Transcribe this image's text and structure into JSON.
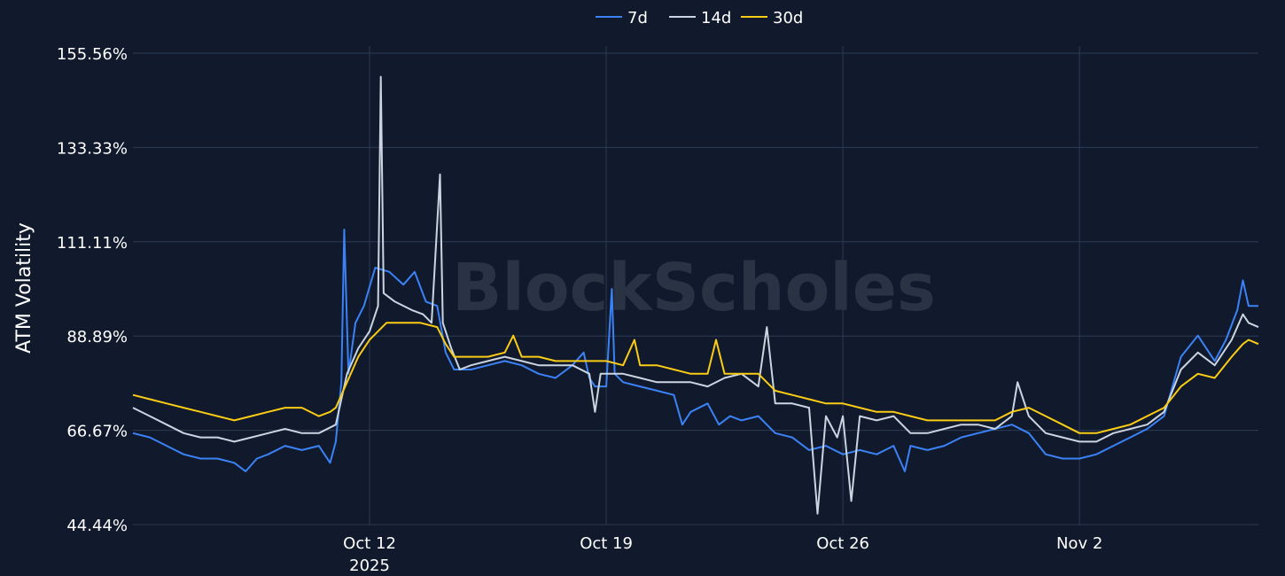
{
  "chart_data": {
    "type": "line",
    "title": "",
    "xlabel": "",
    "ylabel": "ATM Volatility",
    "watermark": "BlockScholes",
    "x_range": [
      "2025-10-05",
      "2025-11-07"
    ],
    "ylim": [
      44.44,
      155.56
    ],
    "y_ticks": [
      {
        "value": 155.56,
        "label": "155.56%"
      },
      {
        "value": 133.33,
        "label": "133.33%"
      },
      {
        "value": 111.11,
        "label": "111.11%"
      },
      {
        "value": 88.89,
        "label": "88.89%"
      },
      {
        "value": 66.67,
        "label": "66.67%"
      },
      {
        "value": 44.44,
        "label": "44.44%"
      }
    ],
    "x_ticks": [
      {
        "date": "2025-10-12",
        "label": "Oct 12",
        "sublabel": "2025"
      },
      {
        "date": "2025-10-19",
        "label": "Oct 19",
        "sublabel": ""
      },
      {
        "date": "2025-10-26",
        "label": "Oct 26",
        "sublabel": ""
      },
      {
        "date": "2025-11-02",
        "label": "Nov 2",
        "sublabel": ""
      }
    ],
    "grid": true,
    "legend_position": "top-center",
    "series": [
      {
        "name": "7d",
        "color": "#3b82f6",
        "points": [
          [
            "2025-10-05 00:00",
            66
          ],
          [
            "2025-10-05 12:00",
            65
          ],
          [
            "2025-10-06 00:00",
            63
          ],
          [
            "2025-10-06 12:00",
            61
          ],
          [
            "2025-10-07 00:00",
            60
          ],
          [
            "2025-10-07 12:00",
            60
          ],
          [
            "2025-10-08 00:00",
            59
          ],
          [
            "2025-10-08 08:00",
            57
          ],
          [
            "2025-10-08 16:00",
            60
          ],
          [
            "2025-10-09 00:00",
            61
          ],
          [
            "2025-10-09 12:00",
            63
          ],
          [
            "2025-10-10 00:00",
            62
          ],
          [
            "2025-10-10 12:00",
            63
          ],
          [
            "2025-10-10 20:00",
            59
          ],
          [
            "2025-10-11 00:00",
            64
          ],
          [
            "2025-10-11 04:00",
            78
          ],
          [
            "2025-10-11 06:00",
            114
          ],
          [
            "2025-10-11 09:00",
            80
          ],
          [
            "2025-10-11 14:00",
            92
          ],
          [
            "2025-10-11 20:00",
            96
          ],
          [
            "2025-10-12 04:00",
            105
          ],
          [
            "2025-10-12 14:00",
            104
          ],
          [
            "2025-10-13 00:00",
            101
          ],
          [
            "2025-10-13 08:00",
            104
          ],
          [
            "2025-10-13 16:00",
            97
          ],
          [
            "2025-10-14 00:00",
            96
          ],
          [
            "2025-10-14 06:00",
            85
          ],
          [
            "2025-10-14 12:00",
            81
          ],
          [
            "2025-10-15 00:00",
            81
          ],
          [
            "2025-10-15 12:00",
            82
          ],
          [
            "2025-10-16 00:00",
            83
          ],
          [
            "2025-10-16 12:00",
            82
          ],
          [
            "2025-10-17 00:00",
            80
          ],
          [
            "2025-10-17 12:00",
            79
          ],
          [
            "2025-10-18 00:00",
            82
          ],
          [
            "2025-10-18 08:00",
            85
          ],
          [
            "2025-10-18 12:00",
            79
          ],
          [
            "2025-10-18 16:00",
            77
          ],
          [
            "2025-10-19 00:00",
            77
          ],
          [
            "2025-10-19 04:00",
            100
          ],
          [
            "2025-10-19 06:00",
            80
          ],
          [
            "2025-10-19 12:00",
            78
          ],
          [
            "2025-10-20 00:00",
            77
          ],
          [
            "2025-10-20 12:00",
            76
          ],
          [
            "2025-10-21 00:00",
            75
          ],
          [
            "2025-10-21 06:00",
            68
          ],
          [
            "2025-10-21 12:00",
            71
          ],
          [
            "2025-10-22 00:00",
            73
          ],
          [
            "2025-10-22 08:00",
            68
          ],
          [
            "2025-10-22 16:00",
            70
          ],
          [
            "2025-10-23 00:00",
            69
          ],
          [
            "2025-10-23 12:00",
            70
          ],
          [
            "2025-10-24 00:00",
            66
          ],
          [
            "2025-10-24 12:00",
            65
          ],
          [
            "2025-10-25 00:00",
            62
          ],
          [
            "2025-10-25 12:00",
            63
          ],
          [
            "2025-10-26 00:00",
            61
          ],
          [
            "2025-10-26 12:00",
            62
          ],
          [
            "2025-10-27 00:00",
            61
          ],
          [
            "2025-10-27 12:00",
            63
          ],
          [
            "2025-10-27 20:00",
            57
          ],
          [
            "2025-10-28 00:00",
            63
          ],
          [
            "2025-10-28 12:00",
            62
          ],
          [
            "2025-10-29 00:00",
            63
          ],
          [
            "2025-10-29 12:00",
            65
          ],
          [
            "2025-10-30 00:00",
            66
          ],
          [
            "2025-10-30 12:00",
            67
          ],
          [
            "2025-10-31 00:00",
            68
          ],
          [
            "2025-10-31 12:00",
            66
          ],
          [
            "2025-11-01 00:00",
            61
          ],
          [
            "2025-11-01 12:00",
            60
          ],
          [
            "2025-11-02 00:00",
            60
          ],
          [
            "2025-11-02 12:00",
            61
          ],
          [
            "2025-11-03 00:00",
            63
          ],
          [
            "2025-11-03 12:00",
            65
          ],
          [
            "2025-11-04 00:00",
            67
          ],
          [
            "2025-11-04 12:00",
            70
          ],
          [
            "2025-11-05 00:00",
            84
          ],
          [
            "2025-11-05 12:00",
            89
          ],
          [
            "2025-11-06 00:00",
            83
          ],
          [
            "2025-11-06 08:00",
            88
          ],
          [
            "2025-11-06 16:00",
            95
          ],
          [
            "2025-11-06 20:00",
            102
          ],
          [
            "2025-11-07 00:00",
            96
          ],
          [
            "2025-11-07 07:00",
            96
          ]
        ]
      },
      {
        "name": "14d",
        "color": "#cbd5e1",
        "points": [
          [
            "2025-10-05 00:00",
            72
          ],
          [
            "2025-10-05 12:00",
            70
          ],
          [
            "2025-10-06 00:00",
            68
          ],
          [
            "2025-10-06 12:00",
            66
          ],
          [
            "2025-10-07 00:00",
            65
          ],
          [
            "2025-10-07 12:00",
            65
          ],
          [
            "2025-10-08 00:00",
            64
          ],
          [
            "2025-10-08 12:00",
            65
          ],
          [
            "2025-10-09 00:00",
            66
          ],
          [
            "2025-10-09 12:00",
            67
          ],
          [
            "2025-10-10 00:00",
            66
          ],
          [
            "2025-10-10 12:00",
            66
          ],
          [
            "2025-10-11 00:00",
            68
          ],
          [
            "2025-10-11 08:00",
            80
          ],
          [
            "2025-10-11 16:00",
            86
          ],
          [
            "2025-10-12 00:00",
            90
          ],
          [
            "2025-10-12 06:00",
            96
          ],
          [
            "2025-10-12 08:00",
            150
          ],
          [
            "2025-10-12 10:00",
            99
          ],
          [
            "2025-10-12 18:00",
            97
          ],
          [
            "2025-10-13 06:00",
            95
          ],
          [
            "2025-10-13 14:00",
            94
          ],
          [
            "2025-10-13 20:00",
            92
          ],
          [
            "2025-10-14 02:00",
            127
          ],
          [
            "2025-10-14 04:00",
            92
          ],
          [
            "2025-10-14 10:00",
            86
          ],
          [
            "2025-10-14 16:00",
            81
          ],
          [
            "2025-10-15 00:00",
            82
          ],
          [
            "2025-10-15 12:00",
            83
          ],
          [
            "2025-10-16 00:00",
            84
          ],
          [
            "2025-10-16 12:00",
            83
          ],
          [
            "2025-10-17 00:00",
            82
          ],
          [
            "2025-10-17 12:00",
            82
          ],
          [
            "2025-10-18 00:00",
            82
          ],
          [
            "2025-10-18 12:00",
            80
          ],
          [
            "2025-10-18 16:00",
            71
          ],
          [
            "2025-10-18 20:00",
            80
          ],
          [
            "2025-10-19 00:00",
            80
          ],
          [
            "2025-10-19 12:00",
            80
          ],
          [
            "2025-10-20 00:00",
            79
          ],
          [
            "2025-10-20 12:00",
            78
          ],
          [
            "2025-10-21 00:00",
            78
          ],
          [
            "2025-10-21 12:00",
            78
          ],
          [
            "2025-10-22 00:00",
            77
          ],
          [
            "2025-10-22 12:00",
            79
          ],
          [
            "2025-10-23 00:00",
            80
          ],
          [
            "2025-10-23 12:00",
            77
          ],
          [
            "2025-10-23 18:00",
            91
          ],
          [
            "2025-10-24 00:00",
            73
          ],
          [
            "2025-10-24 12:00",
            73
          ],
          [
            "2025-10-25 00:00",
            72
          ],
          [
            "2025-10-25 06:00",
            47
          ],
          [
            "2025-10-25 12:00",
            70
          ],
          [
            "2025-10-25 20:00",
            65
          ],
          [
            "2025-10-26 00:00",
            70
          ],
          [
            "2025-10-26 06:00",
            50
          ],
          [
            "2025-10-26 12:00",
            70
          ],
          [
            "2025-10-27 00:00",
            69
          ],
          [
            "2025-10-27 12:00",
            70
          ],
          [
            "2025-10-28 00:00",
            66
          ],
          [
            "2025-10-28 12:00",
            66
          ],
          [
            "2025-10-29 00:00",
            67
          ],
          [
            "2025-10-29 12:00",
            68
          ],
          [
            "2025-10-30 00:00",
            68
          ],
          [
            "2025-10-30 12:00",
            67
          ],
          [
            "2025-10-31 00:00",
            70
          ],
          [
            "2025-10-31 04:00",
            78
          ],
          [
            "2025-10-31 12:00",
            70
          ],
          [
            "2025-11-01 00:00",
            66
          ],
          [
            "2025-11-01 12:00",
            65
          ],
          [
            "2025-11-02 00:00",
            64
          ],
          [
            "2025-11-02 12:00",
            64
          ],
          [
            "2025-11-03 00:00",
            66
          ],
          [
            "2025-11-03 12:00",
            67
          ],
          [
            "2025-11-04 00:00",
            68
          ],
          [
            "2025-11-04 12:00",
            71
          ],
          [
            "2025-11-05 00:00",
            81
          ],
          [
            "2025-11-05 12:00",
            85
          ],
          [
            "2025-11-06 00:00",
            82
          ],
          [
            "2025-11-06 12:00",
            88
          ],
          [
            "2025-11-06 20:00",
            94
          ],
          [
            "2025-11-07 00:00",
            92
          ],
          [
            "2025-11-07 07:00",
            91
          ]
        ]
      },
      {
        "name": "30d",
        "color": "#facc15",
        "points": [
          [
            "2025-10-05 00:00",
            75
          ],
          [
            "2025-10-05 12:00",
            74
          ],
          [
            "2025-10-06 00:00",
            73
          ],
          [
            "2025-10-06 12:00",
            72
          ],
          [
            "2025-10-07 00:00",
            71
          ],
          [
            "2025-10-07 12:00",
            70
          ],
          [
            "2025-10-08 00:00",
            69
          ],
          [
            "2025-10-08 12:00",
            70
          ],
          [
            "2025-10-09 00:00",
            71
          ],
          [
            "2025-10-09 12:00",
            72
          ],
          [
            "2025-10-10 00:00",
            72
          ],
          [
            "2025-10-10 12:00",
            70
          ],
          [
            "2025-10-10 20:00",
            71
          ],
          [
            "2025-10-11 00:00",
            72
          ],
          [
            "2025-10-11 08:00",
            78
          ],
          [
            "2025-10-11 16:00",
            84
          ],
          [
            "2025-10-12 00:00",
            88
          ],
          [
            "2025-10-12 12:00",
            92
          ],
          [
            "2025-10-13 00:00",
            92
          ],
          [
            "2025-10-13 12:00",
            92
          ],
          [
            "2025-10-14 00:00",
            91
          ],
          [
            "2025-10-14 06:00",
            87
          ],
          [
            "2025-10-14 12:00",
            84
          ],
          [
            "2025-10-15 00:00",
            84
          ],
          [
            "2025-10-15 12:00",
            84
          ],
          [
            "2025-10-16 00:00",
            85
          ],
          [
            "2025-10-16 06:00",
            89
          ],
          [
            "2025-10-16 12:00",
            84
          ],
          [
            "2025-10-17 00:00",
            84
          ],
          [
            "2025-10-17 12:00",
            83
          ],
          [
            "2025-10-18 00:00",
            83
          ],
          [
            "2025-10-18 12:00",
            83
          ],
          [
            "2025-10-19 00:00",
            83
          ],
          [
            "2025-10-19 12:00",
            82
          ],
          [
            "2025-10-19 20:00",
            88
          ],
          [
            "2025-10-20 00:00",
            82
          ],
          [
            "2025-10-20 12:00",
            82
          ],
          [
            "2025-10-21 00:00",
            81
          ],
          [
            "2025-10-21 12:00",
            80
          ],
          [
            "2025-10-22 00:00",
            80
          ],
          [
            "2025-10-22 06:00",
            88
          ],
          [
            "2025-10-22 12:00",
            80
          ],
          [
            "2025-10-23 00:00",
            80
          ],
          [
            "2025-10-23 12:00",
            80
          ],
          [
            "2025-10-24 00:00",
            76
          ],
          [
            "2025-10-24 12:00",
            75
          ],
          [
            "2025-10-25 00:00",
            74
          ],
          [
            "2025-10-25 12:00",
            73
          ],
          [
            "2025-10-26 00:00",
            73
          ],
          [
            "2025-10-26 12:00",
            72
          ],
          [
            "2025-10-27 00:00",
            71
          ],
          [
            "2025-10-27 12:00",
            71
          ],
          [
            "2025-10-28 00:00",
            70
          ],
          [
            "2025-10-28 12:00",
            69
          ],
          [
            "2025-10-29 00:00",
            69
          ],
          [
            "2025-10-29 12:00",
            69
          ],
          [
            "2025-10-30 00:00",
            69
          ],
          [
            "2025-10-30 12:00",
            69
          ],
          [
            "2025-10-31 00:00",
            71
          ],
          [
            "2025-10-31 12:00",
            72
          ],
          [
            "2025-11-01 00:00",
            70
          ],
          [
            "2025-11-01 12:00",
            68
          ],
          [
            "2025-11-02 00:00",
            66
          ],
          [
            "2025-11-02 12:00",
            66
          ],
          [
            "2025-11-03 00:00",
            67
          ],
          [
            "2025-11-03 12:00",
            68
          ],
          [
            "2025-11-04 00:00",
            70
          ],
          [
            "2025-11-04 12:00",
            72
          ],
          [
            "2025-11-05 00:00",
            77
          ],
          [
            "2025-11-05 12:00",
            80
          ],
          [
            "2025-11-06 00:00",
            79
          ],
          [
            "2025-11-06 12:00",
            84
          ],
          [
            "2025-11-06 20:00",
            87
          ],
          [
            "2025-11-07 00:00",
            88
          ],
          [
            "2025-11-07 07:00",
            87
          ]
        ]
      }
    ]
  }
}
